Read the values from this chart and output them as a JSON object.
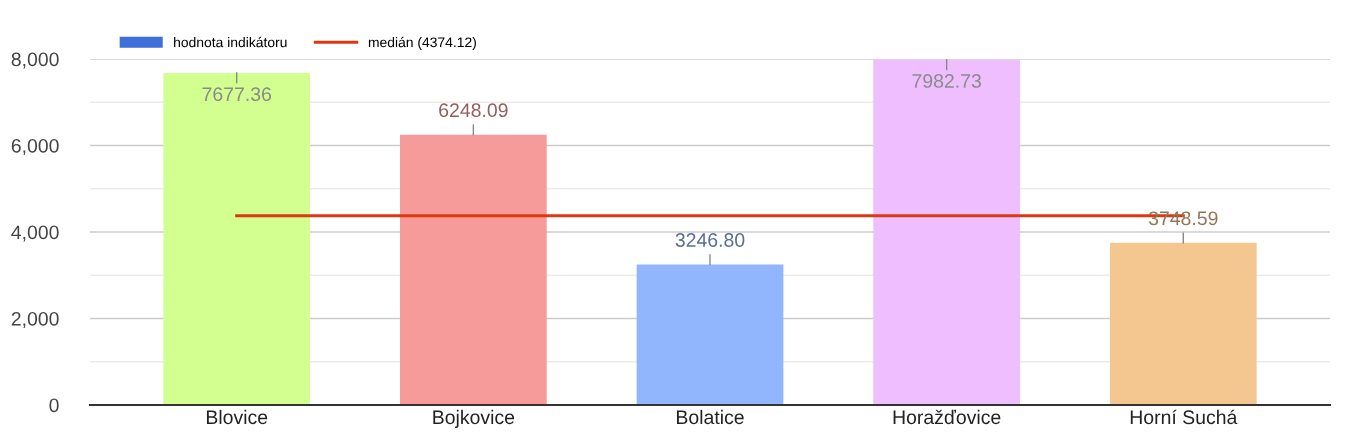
{
  "chart_data": {
    "type": "bar",
    "categories": [
      "Blovice",
      "Bojkovice",
      "Bolatice",
      "Horažďovice",
      "Horní Suchá"
    ],
    "series": [
      {
        "name": "hodnota indikátoru",
        "color": "#3f6fd8",
        "colors": [
          "#d2ff90",
          "#f79a9a",
          "#92b6fe",
          "#efbefe",
          "#f3c78f"
        ],
        "values": [
          7677.36,
          6248.09,
          3246.8,
          7982.73,
          3748.59
        ],
        "value_labels": [
          "7677.36",
          "6248.09",
          "3246.80",
          "7982.73",
          "3748.59"
        ]
      },
      {
        "name": "medián (4374.12)",
        "type": "line",
        "color": "#dc3912",
        "values": [
          4374.12,
          4374.12,
          4374.12,
          4374.12,
          4374.12
        ]
      }
    ],
    "ylim": [
      0,
      8000
    ],
    "yticks": [
      0,
      {
        "value": 1000,
        "label": null
      },
      {
        "value": 2000,
        "label": "2,000"
      },
      {
        "value": 3000,
        "label": null
      },
      {
        "value": 4000,
        "label": "4,000"
      },
      {
        "value": 5000,
        "label": null
      },
      {
        "value": 6000,
        "label": "6,000"
      },
      {
        "value": 7000,
        "label": null
      },
      {
        "value": 8000,
        "label": "8,000"
      }
    ],
    "grid": "y",
    "legend": "top left"
  }
}
